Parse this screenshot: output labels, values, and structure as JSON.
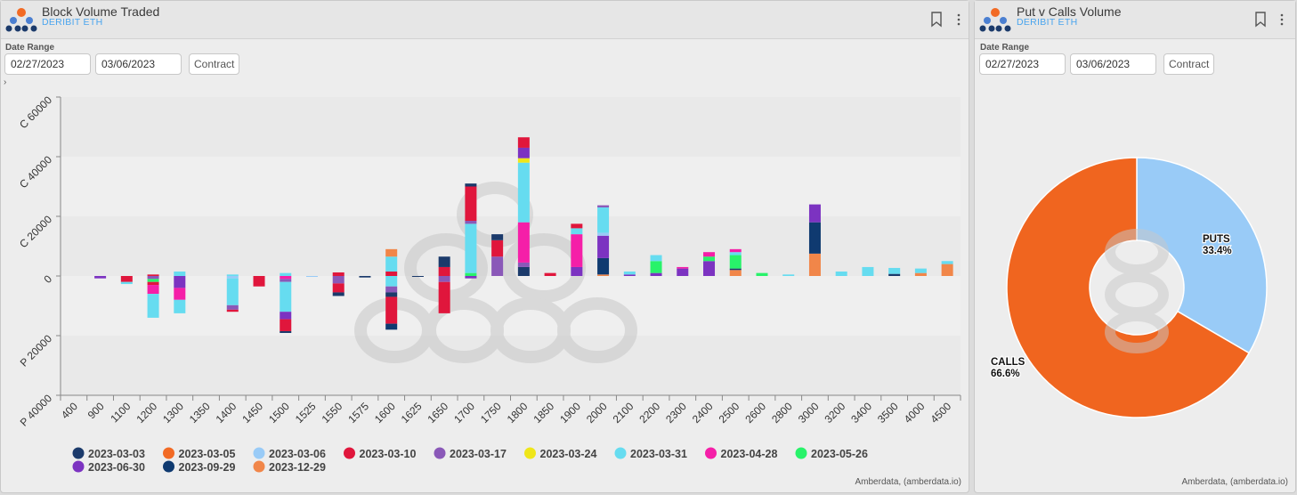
{
  "colors": {
    "2023-03-03": "#1b3a6b",
    "2023-03-05": "#f26a24",
    "2023-03-06": "#99cbf7",
    "2023-03-10": "#e0163c",
    "2023-03-17": "#8a58b8",
    "2023-03-24": "#efe619",
    "2023-03-31": "#66dcf0",
    "2023-04-28": "#f51fa8",
    "2023-05-26": "#28f36a",
    "2023-06-30": "#7c33c1",
    "2023-09-29": "#0f3a70",
    "2023-12-29": "#f18649"
  },
  "left": {
    "title": "Block Volume Traded",
    "subtitle": "DERIBIT ETH",
    "date_range_label": "Date Range",
    "start_date": "02/27/2023",
    "end_date": "03/06/2023",
    "contract_label": "Contract",
    "expand_caret": "›",
    "footer": "Amberdata, (amberdata.io)"
  },
  "right": {
    "title": "Put v Calls Volume",
    "subtitle": "DERIBIT ETH",
    "date_range_label": "Date Range",
    "start_date": "02/27/2023",
    "end_date": "03/06/2023",
    "contract_label": "Contract",
    "footer": "Amberdata, (amberdata.io)"
  },
  "chart_data": [
    {
      "type": "bar",
      "stacked": true,
      "ylim": [
        -40000,
        60000
      ],
      "y_ticks": [
        {
          "value": 60000,
          "label": "C 60000"
        },
        {
          "value": 40000,
          "label": "C 40000"
        },
        {
          "value": 20000,
          "label": "C 20000"
        },
        {
          "value": 0,
          "label": "0"
        },
        {
          "value": -20000,
          "label": "P 20000"
        },
        {
          "value": -40000,
          "label": "P 40000"
        }
      ],
      "categories": [
        "400",
        "900",
        "1100",
        "1200",
        "1300",
        "1350",
        "1400",
        "1450",
        "1500",
        "1525",
        "1550",
        "1575",
        "1600",
        "1625",
        "1650",
        "1700",
        "1750",
        "1800",
        "1850",
        "1900",
        "2000",
        "2100",
        "2200",
        "2300",
        "2400",
        "2500",
        "2600",
        "2800",
        "3000",
        "3200",
        "3400",
        "3500",
        "4000",
        "4500"
      ],
      "legend_position": "bottom",
      "legend": [
        "2023-03-03",
        "2023-03-05",
        "2023-03-06",
        "2023-03-10",
        "2023-03-17",
        "2023-03-24",
        "2023-03-31",
        "2023-04-28",
        "2023-05-26",
        "2023-06-30",
        "2023-09-29",
        "2023-12-29"
      ],
      "stacks": [
        {
          "category": "900",
          "puts": [
            {
              "series": "2023-06-30",
              "value": 800
            }
          ]
        },
        {
          "category": "1100",
          "puts": [
            {
              "series": "2023-03-10",
              "value": 2000
            },
            {
              "series": "2023-03-31",
              "value": 700
            }
          ]
        },
        {
          "category": "1200",
          "calls": [
            {
              "series": "2023-03-10",
              "value": 500
            }
          ],
          "puts": [
            {
              "series": "2023-03-17",
              "value": 1000
            },
            {
              "series": "2023-05-26",
              "value": 1000
            },
            {
              "series": "2023-03-10",
              "value": 1000
            },
            {
              "series": "2023-04-28",
              "value": 3000
            },
            {
              "series": "2023-03-31",
              "value": 8000
            }
          ]
        },
        {
          "category": "1300",
          "calls": [
            {
              "series": "2023-03-31",
              "value": 1500
            }
          ],
          "puts": [
            {
              "series": "2023-06-30",
              "value": 4000
            },
            {
              "series": "2023-04-28",
              "value": 4000
            },
            {
              "series": "2023-03-31",
              "value": 4500
            }
          ]
        },
        {
          "category": "1400",
          "calls": [
            {
              "series": "2023-03-31",
              "value": 500
            }
          ],
          "puts": [
            {
              "series": "2023-03-06",
              "value": 800
            },
            {
              "series": "2023-03-31",
              "value": 9000
            },
            {
              "series": "2023-03-17",
              "value": 1500
            },
            {
              "series": "2023-03-10",
              "value": 700
            }
          ]
        },
        {
          "category": "1450",
          "puts": [
            {
              "series": "2023-03-10",
              "value": 3500
            }
          ]
        },
        {
          "category": "1500",
          "calls": [
            {
              "series": "2023-03-31",
              "value": 1000
            }
          ],
          "puts": [
            {
              "series": "2023-04-28",
              "value": 1000
            },
            {
              "series": "2023-03-17",
              "value": 1000
            },
            {
              "series": "2023-03-31",
              "value": 10000
            },
            {
              "series": "2023-06-30",
              "value": 2500
            },
            {
              "series": "2023-03-10",
              "value": 4000
            },
            {
              "series": "2023-03-03",
              "value": 600
            }
          ]
        },
        {
          "category": "1525",
          "puts": [
            {
              "series": "2023-03-06",
              "value": 300
            }
          ]
        },
        {
          "category": "1550",
          "calls": [
            {
              "series": "2023-03-10",
              "value": 1200
            }
          ],
          "puts": [
            {
              "series": "2023-03-17",
              "value": 2500
            },
            {
              "series": "2023-03-10",
              "value": 3000
            },
            {
              "series": "2023-03-03",
              "value": 1200
            }
          ]
        },
        {
          "category": "1575",
          "puts": [
            {
              "series": "2023-03-03",
              "value": 500
            }
          ]
        },
        {
          "category": "1600",
          "calls": [
            {
              "series": "2023-03-10",
              "value": 1500
            },
            {
              "series": "2023-03-31",
              "value": 5000
            },
            {
              "series": "2023-12-29",
              "value": 2500
            }
          ],
          "puts": [
            {
              "series": "2023-03-31",
              "value": 3500
            },
            {
              "series": "2023-03-17",
              "value": 2000
            },
            {
              "series": "2023-03-03",
              "value": 1500
            },
            {
              "series": "2023-03-10",
              "value": 9000
            },
            {
              "series": "2023-09-29",
              "value": 2000
            }
          ]
        },
        {
          "category": "1625",
          "puts": [
            {
              "series": "2023-03-03",
              "value": 300
            }
          ]
        },
        {
          "category": "1650",
          "calls": [
            {
              "series": "2023-03-10",
              "value": 3000
            },
            {
              "series": "2023-03-03",
              "value": 3500
            }
          ],
          "puts": [
            {
              "series": "2023-03-17",
              "value": 2000
            },
            {
              "series": "2023-03-10",
              "value": 10500
            }
          ]
        },
        {
          "category": "1700",
          "calls": [
            {
              "series": "2023-05-26",
              "value": 1000
            },
            {
              "series": "2023-03-31",
              "value": 16500
            },
            {
              "series": "2023-03-17",
              "value": 1000
            },
            {
              "series": "2023-03-10",
              "value": 11500
            },
            {
              "series": "2023-03-03",
              "value": 1000
            }
          ],
          "puts": [
            {
              "series": "2023-06-30",
              "value": 800
            }
          ]
        },
        {
          "category": "1750",
          "calls": [
            {
              "series": "2023-03-17",
              "value": 6500
            },
            {
              "series": "2023-03-10",
              "value": 5500
            },
            {
              "series": "2023-03-03",
              "value": 2000
            }
          ]
        },
        {
          "category": "1800",
          "calls": [
            {
              "series": "2023-03-03",
              "value": 3000
            },
            {
              "series": "2023-03-17",
              "value": 1500
            },
            {
              "series": "2023-04-28",
              "value": 13500
            },
            {
              "series": "2023-03-31",
              "value": 20000
            },
            {
              "series": "2023-03-24",
              "value": 1500
            },
            {
              "series": "2023-06-30",
              "value": 3500
            },
            {
              "series": "2023-03-10",
              "value": 3500
            }
          ]
        },
        {
          "category": "1850",
          "calls": [
            {
              "series": "2023-03-10",
              "value": 1000
            }
          ]
        },
        {
          "category": "1900",
          "calls": [
            {
              "series": "2023-06-30",
              "value": 3000
            },
            {
              "series": "2023-04-28",
              "value": 11000
            },
            {
              "series": "2023-03-31",
              "value": 2000
            },
            {
              "series": "2023-03-10",
              "value": 1500
            }
          ]
        },
        {
          "category": "2000",
          "calls": [
            {
              "series": "2023-12-29",
              "value": 500
            },
            {
              "series": "2023-09-29",
              "value": 5500
            },
            {
              "series": "2023-06-30",
              "value": 7500
            },
            {
              "series": "2023-03-06",
              "value": 1000
            },
            {
              "series": "2023-03-31",
              "value": 8500
            },
            {
              "series": "2023-03-17",
              "value": 700
            }
          ]
        },
        {
          "category": "2100",
          "calls": [
            {
              "series": "2023-06-30",
              "value": 500
            },
            {
              "series": "2023-03-31",
              "value": 1000
            }
          ]
        },
        {
          "category": "2200",
          "calls": [
            {
              "series": "2023-06-30",
              "value": 1000
            },
            {
              "series": "2023-05-26",
              "value": 4000
            },
            {
              "series": "2023-03-31",
              "value": 2000
            }
          ]
        },
        {
          "category": "2300",
          "calls": [
            {
              "series": "2023-06-30",
              "value": 2500
            },
            {
              "series": "2023-04-28",
              "value": 500
            }
          ]
        },
        {
          "category": "2400",
          "calls": [
            {
              "series": "2023-06-30",
              "value": 5000
            },
            {
              "series": "2023-05-26",
              "value": 1500
            },
            {
              "series": "2023-04-28",
              "value": 1500
            }
          ]
        },
        {
          "category": "2500",
          "calls": [
            {
              "series": "2023-12-29",
              "value": 2000
            },
            {
              "series": "2023-03-03",
              "value": 500
            },
            {
              "series": "2023-05-26",
              "value": 4500
            },
            {
              "series": "2023-03-31",
              "value": 1000
            },
            {
              "series": "2023-04-28",
              "value": 1000
            }
          ]
        },
        {
          "category": "2600",
          "calls": [
            {
              "series": "2023-05-26",
              "value": 1000
            }
          ]
        },
        {
          "category": "2800",
          "calls": [
            {
              "series": "2023-03-31",
              "value": 500
            }
          ]
        },
        {
          "category": "3000",
          "calls": [
            {
              "series": "2023-12-29",
              "value": 7500
            },
            {
              "series": "2023-09-29",
              "value": 10500
            },
            {
              "series": "2023-06-30",
              "value": 6000
            }
          ]
        },
        {
          "category": "3200",
          "calls": [
            {
              "series": "2023-03-31",
              "value": 1500
            }
          ]
        },
        {
          "category": "3400",
          "calls": [
            {
              "series": "2023-03-31",
              "value": 3000
            }
          ]
        },
        {
          "category": "3500",
          "calls": [
            {
              "series": "2023-03-03",
              "value": 700
            },
            {
              "series": "2023-03-31",
              "value": 2000
            }
          ]
        },
        {
          "category": "4000",
          "calls": [
            {
              "series": "2023-12-29",
              "value": 1000
            },
            {
              "series": "2023-03-31",
              "value": 1500
            }
          ]
        },
        {
          "category": "4500",
          "calls": [
            {
              "series": "2023-12-29",
              "value": 4000
            },
            {
              "series": "2023-03-31",
              "value": 1000
            }
          ]
        }
      ]
    },
    {
      "type": "pie",
      "donut": true,
      "slices": [
        {
          "name": "PUTS",
          "label": "33.4%",
          "value": 33.4,
          "color": "#99cbf7"
        },
        {
          "name": "CALLS",
          "label": "66.6%",
          "value": 66.6,
          "color": "#f0651f"
        }
      ]
    }
  ]
}
